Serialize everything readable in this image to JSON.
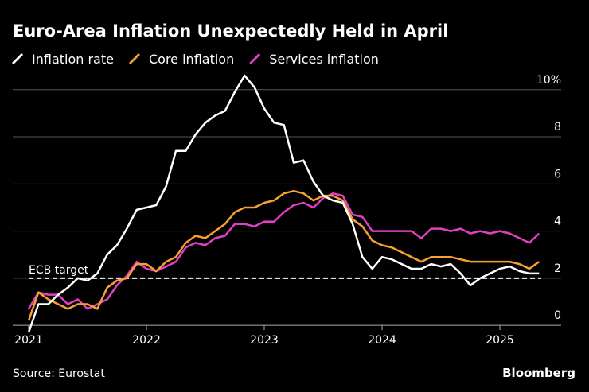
{
  "chart_data": {
    "type": "line",
    "title": "Euro-Area Inflation Unexpectedly Held in April",
    "source": "Source: Eurostat",
    "brand": "Bloomberg",
    "x": [
      2021,
      2021.083,
      2021.167,
      2021.25,
      2021.333,
      2021.417,
      2021.5,
      2021.583,
      2021.667,
      2021.75,
      2021.833,
      2021.917,
      2022,
      2022.083,
      2022.167,
      2022.25,
      2022.333,
      2022.417,
      2022.5,
      2022.583,
      2022.667,
      2022.75,
      2022.833,
      2022.917,
      2023,
      2023.083,
      2023.167,
      2023.25,
      2023.333,
      2023.417,
      2023.5,
      2023.583,
      2023.667,
      2023.75,
      2023.833,
      2023.917,
      2024,
      2024.083,
      2024.167,
      2024.25,
      2024.333,
      2024.417,
      2024.5,
      2024.583,
      2024.667,
      2024.75,
      2024.833,
      2024.917,
      2025,
      2025.083,
      2025.167,
      2025.25,
      2025.333
    ],
    "series": [
      {
        "name": "Inflation rate",
        "color": "#ffffff",
        "values": [
          -0.3,
          0.9,
          0.9,
          1.3,
          1.6,
          2.0,
          1.9,
          2.2,
          3.0,
          3.4,
          4.1,
          4.9,
          5.0,
          5.1,
          5.9,
          7.4,
          7.4,
          8.1,
          8.6,
          8.9,
          9.1,
          9.9,
          10.6,
          10.1,
          9.2,
          8.6,
          8.5,
          6.9,
          7.0,
          6.1,
          5.5,
          5.3,
          5.2,
          4.3,
          2.9,
          2.4,
          2.9,
          2.8,
          2.6,
          2.4,
          2.4,
          2.6,
          2.5,
          2.6,
          2.2,
          1.7,
          2.0,
          2.2,
          2.4,
          2.5,
          2.3,
          2.2,
          2.2
        ]
      },
      {
        "name": "Core inflation",
        "color": "#f5a033",
        "values": [
          0.2,
          1.4,
          1.1,
          0.9,
          0.7,
          0.9,
          0.9,
          0.7,
          1.6,
          1.9,
          2.0,
          2.6,
          2.6,
          2.3,
          2.7,
          2.9,
          3.5,
          3.8,
          3.7,
          4.0,
          4.3,
          4.8,
          5.0,
          5.0,
          5.2,
          5.3,
          5.6,
          5.7,
          5.6,
          5.3,
          5.5,
          5.5,
          5.3,
          4.5,
          4.2,
          3.6,
          3.4,
          3.3,
          3.1,
          2.9,
          2.7,
          2.9,
          2.9,
          2.9,
          2.8,
          2.7,
          2.7,
          2.7,
          2.7,
          2.7,
          2.6,
          2.4,
          2.7
        ]
      },
      {
        "name": "Services inflation",
        "color": "#e23fc3",
        "values": [
          0.7,
          1.4,
          1.3,
          1.3,
          0.9,
          1.1,
          0.7,
          0.9,
          1.1,
          1.7,
          2.1,
          2.7,
          2.4,
          2.3,
          2.5,
          2.7,
          3.3,
          3.5,
          3.4,
          3.7,
          3.8,
          4.3,
          4.3,
          4.2,
          4.4,
          4.4,
          4.8,
          5.1,
          5.2,
          5.0,
          5.4,
          5.6,
          5.5,
          4.7,
          4.6,
          4.0,
          4.0,
          4.0,
          4.0,
          4.0,
          3.7,
          4.1,
          4.1,
          4.0,
          4.1,
          3.9,
          4.0,
          3.9,
          4.0,
          3.9,
          3.7,
          3.5,
          3.9
        ]
      }
    ],
    "target": {
      "value": 2,
      "label": "ECB target"
    },
    "xlim": [
      2020.865,
      2025.52
    ],
    "xticks": [
      2021,
      2022,
      2023,
      2024,
      2025
    ],
    "ylim": [
      -0.4,
      10.6
    ],
    "yticks": [
      0,
      2,
      4,
      6,
      8,
      {
        "value": 10,
        "label": "10%"
      }
    ],
    "grid": true
  }
}
